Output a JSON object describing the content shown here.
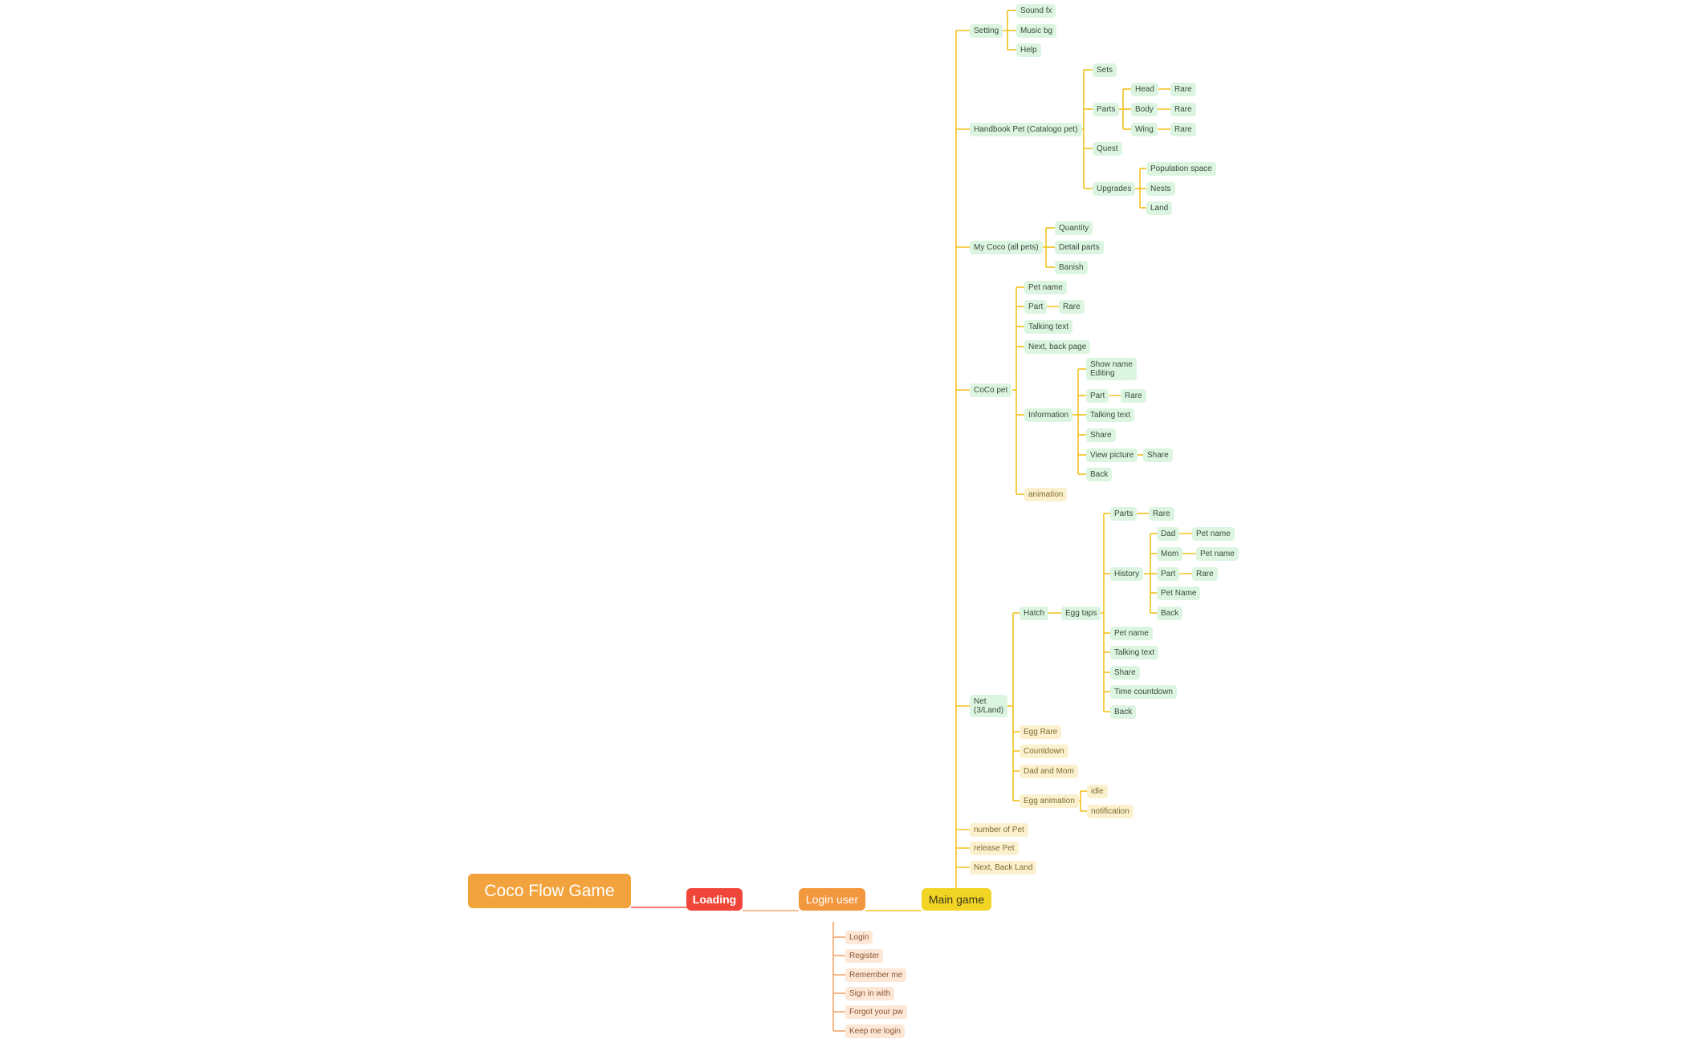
{
  "title": "Coco Flow Game",
  "colors": {
    "root_fill": "#f2a33d",
    "loading_fill": "#f0463a",
    "login_fill": "#f3973f",
    "main_fill": "#f2d424",
    "line_red": "#ef4d45",
    "line_orange": "#f3a56a",
    "line_yellow": "#f2c21d",
    "node_green": "#dcf5e0",
    "node_yellow": "#fbf1cf",
    "node_orange": "#fde7d6"
  },
  "nodes": {
    "loading": "Loading",
    "login_user": "Login user",
    "main_game": "Main game",
    "login": {
      "login": "Login",
      "register": "Register",
      "remember_me": "Remember me",
      "sign_in_with": "Sign in with",
      "forgot_pw": "Forgot your pw",
      "keep_me_login": "Keep me login"
    },
    "setting": {
      "label": "Setting",
      "sound_fx": "Sound fx",
      "music_bg": "Music bg",
      "help": "Help"
    },
    "handbook": {
      "label": "Handbook Pet (Catalogo pet)",
      "sets": "Sets",
      "parts": "Parts",
      "head": "Head",
      "body": "Body",
      "wing": "Wing",
      "rare": "Rare",
      "quest": "Quest",
      "upgrades": "Upgrades",
      "population_space": "Population space",
      "nests": "Nests",
      "land": "Land"
    },
    "my_coco": {
      "label": "My Coco (all pets)",
      "quantity": "Quantity",
      "detail_parts": "Detail parts",
      "banish": "Banish"
    },
    "coco_pet": {
      "label": "CoCo pet",
      "pet_name": "Pet name",
      "part": "Part",
      "rare": "Rare",
      "talking_text": "Talking text",
      "next_back_page": "Next, back page",
      "information": "Information",
      "show_name_editing": "Show name\nEditing",
      "info_part": "Part",
      "info_rare": "Rare",
      "info_talking_text": "Talking text",
      "share": "Share",
      "view_picture": "View picture",
      "view_share": "Share",
      "back": "Back",
      "animation": "animation"
    },
    "net": {
      "label": "Net\n(3/Land)",
      "hatch": "Hatch",
      "egg_taps": "Egg taps",
      "parts": "Parts",
      "parts_rare": "Rare",
      "history": "History",
      "dad": "Dad",
      "dad_pet_name": "Pet name",
      "mom": "Mom",
      "mom_pet_name": "Pet name",
      "part": "Part",
      "part_rare": "Rare",
      "history_pet_name": "Pet Name",
      "history_back": "Back",
      "pet_name": "Pet name",
      "talking_text": "Talking text",
      "share": "Share",
      "time_countdown": "Time countdown",
      "back": "Back",
      "egg_rare": "Egg Rare",
      "countdown": "Countdown",
      "dad_and_mom": "Dad and Mom",
      "egg_animation": "Egg animation",
      "idle": "idle",
      "notification": "notification"
    },
    "number_of_pet": "number of Pet",
    "release_pet": "release Pet",
    "next_back_land": "Next, Back Land"
  }
}
